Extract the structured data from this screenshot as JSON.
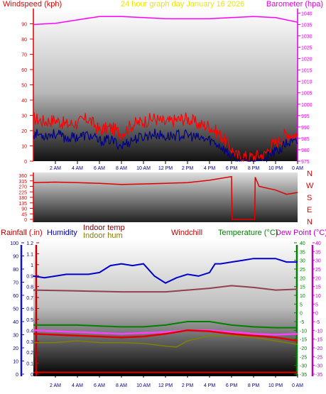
{
  "header": {
    "top_left": "Windspeed (kph)",
    "top_center": "24 hour graph day   January 16 2026",
    "top_right": "Barometer (hpa)"
  },
  "colors": {
    "wind_axis": "#e00000",
    "baro_axis": "#e000e0",
    "title_yellow": "#e8e800",
    "rain": "#c00000",
    "humidity": "#0000c8",
    "indoor_temp": "#800000",
    "indoor_hum": "#808000",
    "windchill": "#c00000",
    "temperature": "#008000",
    "dewpoint": "#c000c0",
    "wind_line": "#ff0000",
    "gust_line": "#00008b",
    "baro_line": "#ff00ff"
  },
  "middle_axis": {
    "labels": [
      "N",
      "W",
      "S",
      "E",
      "N"
    ]
  },
  "bottom_legend": {
    "rainfall": "Rainfall (.in)",
    "humidity": "Humidity",
    "indoor_temp": "Indoor temp",
    "indoor_hum": "Indoor hum",
    "windchill": "Windchill",
    "temperature": "Temperature (°C)",
    "dewpoint": "Dew Point (°C)"
  },
  "chart_data": [
    {
      "type": "line",
      "title": "24 hour graph day   January 16 2026",
      "x_ticks": [
        "2 AM",
        "4 AM",
        "6 AM",
        "8 AM",
        "10 AM",
        "12 PM",
        "2 PM",
        "4 PM",
        "6 PM",
        "8 PM",
        "10 PM",
        "0 AM"
      ],
      "y_left": {
        "label": "Windspeed (kph)",
        "ticks": [
          0,
          10,
          20,
          30,
          40,
          50,
          60,
          70,
          80,
          90
        ],
        "lim": [
          0,
          100
        ]
      },
      "y_right": {
        "label": "Barometer (hpa)",
        "ticks": [
          975,
          980,
          985,
          990,
          995,
          1000,
          1005,
          1010,
          1015,
          1020,
          1025,
          1030,
          1035,
          1040
        ],
        "lim": [
          975,
          1042
        ]
      },
      "series": [
        {
          "name": "Barometer (hpa)",
          "axis": "right",
          "hour": [
            0,
            2,
            4,
            6,
            8,
            10,
            12,
            14,
            16,
            18,
            20,
            22,
            24
          ],
          "values": [
            1035,
            1035.5,
            1037,
            1038.5,
            1038.5,
            1038,
            1037.5,
            1037.5,
            1037.5,
            1038,
            1038.5,
            1038,
            1036
          ]
        },
        {
          "name": "Windspeed (kph)",
          "axis": "left",
          "hour": [
            0,
            1,
            2,
            3,
            4,
            5,
            6,
            7,
            8,
            9,
            10,
            11,
            12,
            13,
            14,
            15,
            16,
            17,
            18,
            18.5,
            19,
            19.5,
            20,
            20.5,
            21,
            21.5,
            22,
            22.5,
            23,
            24
          ],
          "values": [
            28,
            26,
            27,
            24,
            25,
            28,
            20,
            22,
            18,
            24,
            26,
            28,
            25,
            27,
            28,
            24,
            23,
            17,
            8,
            3,
            4,
            2,
            3,
            4,
            4,
            10,
            12,
            15,
            18,
            17
          ]
        },
        {
          "name": "Wind gust",
          "axis": "left",
          "hour": [
            0,
            1,
            2,
            3,
            4,
            5,
            6,
            7,
            8,
            9,
            10,
            11,
            12,
            13,
            14,
            15,
            16,
            17,
            18,
            18.5,
            19,
            19.5,
            20,
            20.5,
            21,
            21.5,
            22,
            22.5,
            23,
            24
          ],
          "values": [
            18,
            17,
            18,
            15,
            16,
            17,
            13,
            14,
            10,
            14,
            16,
            18,
            16,
            17,
            17,
            15,
            14,
            10,
            3,
            0,
            1,
            0,
            0,
            1,
            1,
            4,
            6,
            8,
            12,
            12
          ]
        }
      ]
    },
    {
      "type": "line",
      "y_left": {
        "ticks": [
          0,
          45,
          90,
          135,
          180,
          225,
          270,
          315,
          360
        ],
        "lim": [
          0,
          360
        ]
      },
      "y_right": {
        "labels": [
          "N",
          "W",
          "S",
          "E",
          "N"
        ]
      },
      "series": [
        {
          "name": "Wind direction",
          "hour": [
            0,
            2,
            4,
            6,
            8,
            10,
            12,
            14,
            16,
            18,
            18.05,
            20.1,
            20.15,
            20.5,
            22,
            23,
            24
          ],
          "values": [
            300,
            305,
            300,
            295,
            285,
            290,
            295,
            300,
            320,
            350,
            0,
            0,
            345,
            270,
            240,
            205,
            220
          ]
        }
      ]
    },
    {
      "type": "line",
      "x_ticks": [
        "2 AM",
        "4 AM",
        "6 AM",
        "8 AM",
        "10 AM",
        "12 PM",
        "2 PM",
        "4 PM",
        "6 PM",
        "8 PM",
        "10 PM",
        "0 AM"
      ],
      "axes": {
        "rain_ticks": [
          0,
          0.1,
          0.2,
          0.3,
          0.4,
          0.5,
          0.6,
          0.7,
          0.8,
          0.9,
          1,
          1.1,
          1.2
        ],
        "humidity_ticks": [
          0,
          10,
          20,
          30,
          40,
          50,
          60,
          70,
          80,
          90,
          100
        ],
        "temp_ticks": [
          -35,
          -30,
          -25,
          -20,
          -15,
          -10,
          -5,
          0,
          5,
          10,
          15,
          20,
          25,
          30,
          35,
          40
        ],
        "dew_ticks": [
          -35,
          -30,
          -25,
          -20,
          -15,
          -10,
          -5,
          0,
          5,
          10,
          15,
          20,
          25,
          30,
          35,
          40
        ],
        "temp_lim": [
          -35,
          40
        ]
      },
      "series": [
        {
          "name": "Humidity",
          "axis": "temp",
          "hour": [
            0,
            1,
            2,
            3,
            4,
            5,
            6,
            7,
            8,
            9,
            10,
            11,
            12,
            13,
            14,
            15,
            16,
            16.5,
            17,
            18,
            19,
            20,
            21,
            22,
            23,
            24
          ],
          "values": [
            21,
            20,
            21,
            22,
            22,
            22,
            23,
            27,
            28,
            27,
            28,
            21,
            17,
            20,
            22,
            21,
            23,
            28,
            28,
            29,
            30,
            31,
            31,
            31,
            29,
            29
          ]
        },
        {
          "name": "Indoor temp",
          "axis": "temp",
          "hour": [
            0,
            4,
            8,
            12,
            14,
            16,
            18,
            20,
            22,
            24
          ],
          "values": [
            13,
            12.5,
            12,
            12,
            13,
            14,
            15.5,
            14.5,
            13,
            13.5
          ]
        },
        {
          "name": "Temperature",
          "axis": "temp",
          "hour": [
            0,
            2,
            4,
            6,
            8,
            10,
            12,
            14,
            16,
            18,
            20,
            22,
            24
          ],
          "values": [
            -7,
            -7,
            -7,
            -7.5,
            -8,
            -8,
            -7,
            -5,
            -5,
            -7,
            -8,
            -8.5,
            -8.5
          ]
        },
        {
          "name": "Dew Point",
          "axis": "temp",
          "hour": [
            0,
            2,
            4,
            6,
            8,
            10,
            12,
            14,
            16,
            18,
            20,
            22,
            24
          ],
          "values": [
            -10,
            -10.5,
            -11,
            -11.5,
            -12,
            -11.5,
            -11,
            -10,
            -10,
            -11,
            -12,
            -12.5,
            -12
          ]
        },
        {
          "name": "Windchill",
          "axis": "temp",
          "hour": [
            0,
            2,
            4,
            6,
            8,
            10,
            12,
            14,
            16,
            18,
            20,
            22,
            24
          ],
          "values": [
            -12,
            -12.5,
            -13,
            -13.5,
            -14,
            -13.5,
            -12,
            -10,
            -10.5,
            -12,
            -13,
            -14,
            -16
          ]
        },
        {
          "name": "Indoor hum",
          "axis": "temp",
          "hour": [
            0,
            2,
            4,
            6,
            8,
            10,
            12,
            13,
            14,
            16,
            18,
            20,
            22,
            24
          ],
          "values": [
            -17,
            -17,
            -16,
            -17,
            -17,
            -17.5,
            -19,
            -19.5,
            -16,
            -13,
            -13,
            -14,
            -16,
            -18
          ]
        },
        {
          "name": "Rainfall",
          "axis": "temp",
          "hour": [
            0,
            24
          ],
          "values": [
            -34,
            -34
          ]
        }
      ]
    }
  ]
}
